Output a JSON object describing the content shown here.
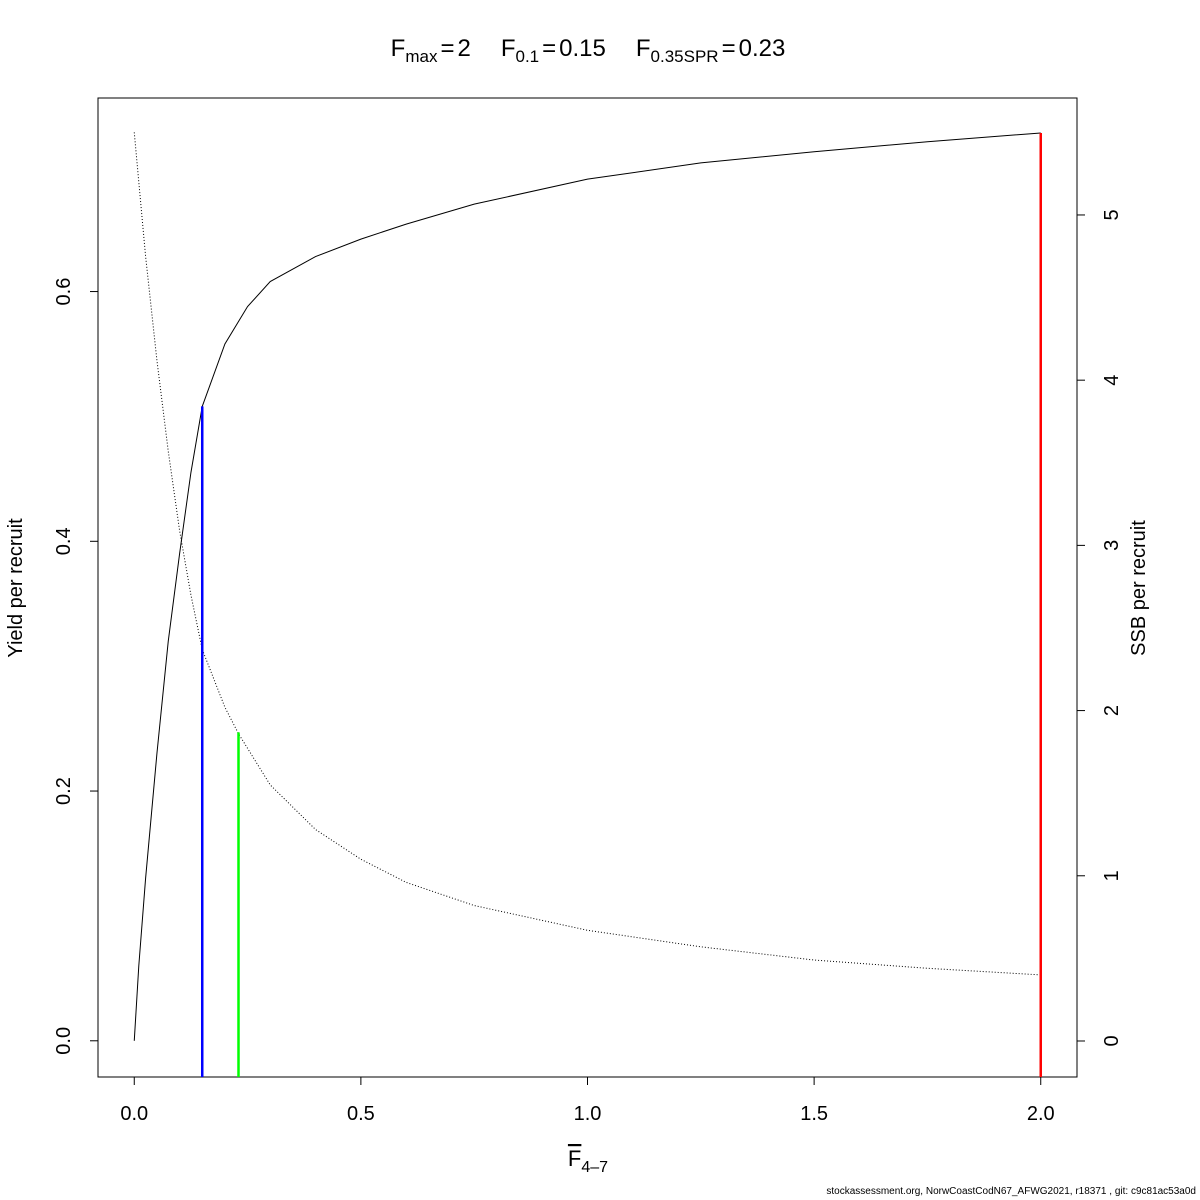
{
  "chart_data": {
    "type": "line",
    "title_parts": [
      {
        "symbol": "F",
        "subscript": "max",
        "value": 2
      },
      {
        "symbol": "F",
        "subscript": "0.1",
        "value": 0.15
      },
      {
        "symbol": "F",
        "subscript": "0.35SPR",
        "value": 0.23
      }
    ],
    "equals": "=",
    "xlabel": "F",
    "xlabel_subscript": "4–7",
    "ylabel": "Yield per recruit",
    "y2label": "SSB per recruit",
    "xlim": [
      -0.08,
      2.08
    ],
    "ylim": [
      -0.029,
      0.755
    ],
    "y2lim": [
      -0.218,
      5.708
    ],
    "xticks": [
      {
        "value": 0,
        "label": "0.0"
      },
      0.5,
      {
        "value": 1,
        "label": "1.0"
      },
      1.5,
      {
        "value": 2,
        "label": "2.0"
      }
    ],
    "yticks": [
      {
        "value": 0,
        "label": "0.0"
      },
      0.2,
      0.4,
      0.6
    ],
    "y2ticks": [
      0,
      1,
      2,
      3,
      4,
      5
    ],
    "series": [
      {
        "name": "Yield per recruit",
        "color": "#000000",
        "dash": "solid",
        "x": [
          0,
          0.01,
          0.025,
          0.05,
          0.075,
          0.1,
          0.125,
          0.15,
          0.2,
          0.25,
          0.3,
          0.4,
          0.5,
          0.6,
          0.75,
          1.0,
          1.25,
          1.5,
          1.75,
          2.0
        ],
        "values": [
          0,
          0.06,
          0.13,
          0.23,
          0.32,
          0.39,
          0.455,
          0.508,
          0.558,
          0.588,
          0.608,
          0.628,
          0.642,
          0.654,
          0.67,
          0.69,
          0.703,
          0.712,
          0.72,
          0.727
        ]
      },
      {
        "name": "SSB per recruit",
        "color": "#000000",
        "dash": "dotted",
        "axis": "y2",
        "x": [
          0,
          0.025,
          0.05,
          0.075,
          0.1,
          0.125,
          0.15,
          0.2,
          0.23,
          0.3,
          0.4,
          0.5,
          0.6,
          0.75,
          1.0,
          1.25,
          1.5,
          1.75,
          2.0
        ],
        "values": [
          5.5,
          4.75,
          4.12,
          3.57,
          3.09,
          2.7,
          2.37,
          2.02,
          1.86,
          1.55,
          1.28,
          1.1,
          0.96,
          0.82,
          0.67,
          0.57,
          0.49,
          0.44,
          0.4
        ]
      }
    ],
    "reference_lines": [
      {
        "x": 0.15,
        "top": 0.508,
        "color": "#0000ff"
      },
      {
        "x": 0.23,
        "top": 0.247,
        "color": "#00ff00"
      },
      {
        "x": 2,
        "top": 0.727,
        "color": "#ff0000"
      }
    ],
    "footer": "stockassessment.org, NorwCoastCodN67_AFWG2021, r18371 , git: c9c81ac53a0d"
  }
}
